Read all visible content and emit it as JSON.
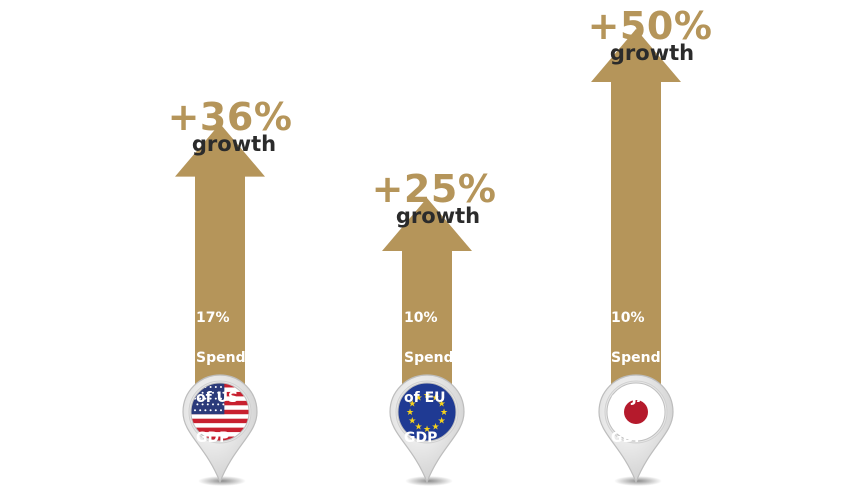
{
  "colors": {
    "arrow": "#b5955a",
    "growth_text": "#2b2b2b",
    "inner_text": "#ffffff"
  },
  "chart_data": {
    "type": "bar",
    "categories": [
      "US",
      "EU",
      "JAP"
    ],
    "series": [
      {
        "values": [
          36,
          25,
          50
        ]
      }
    ],
    "labels": {
      "growth": [
        "+36%",
        "+25%",
        "+50%"
      ],
      "growth_word": [
        "growth",
        "growth",
        "growth"
      ],
      "spend": [
        [
          "17%",
          "Spend",
          "of US",
          "GDP"
        ],
        [
          "10%",
          "Spend",
          "of EU",
          "GDP"
        ],
        [
          "10%",
          "Spend",
          "of JAP",
          "GDP"
        ]
      ]
    },
    "spend_pct_of_gdp": [
      17,
      10,
      10
    ],
    "flags": [
      "us-flag-icon",
      "eu-flag-icon",
      "japan-flag-icon"
    ]
  }
}
